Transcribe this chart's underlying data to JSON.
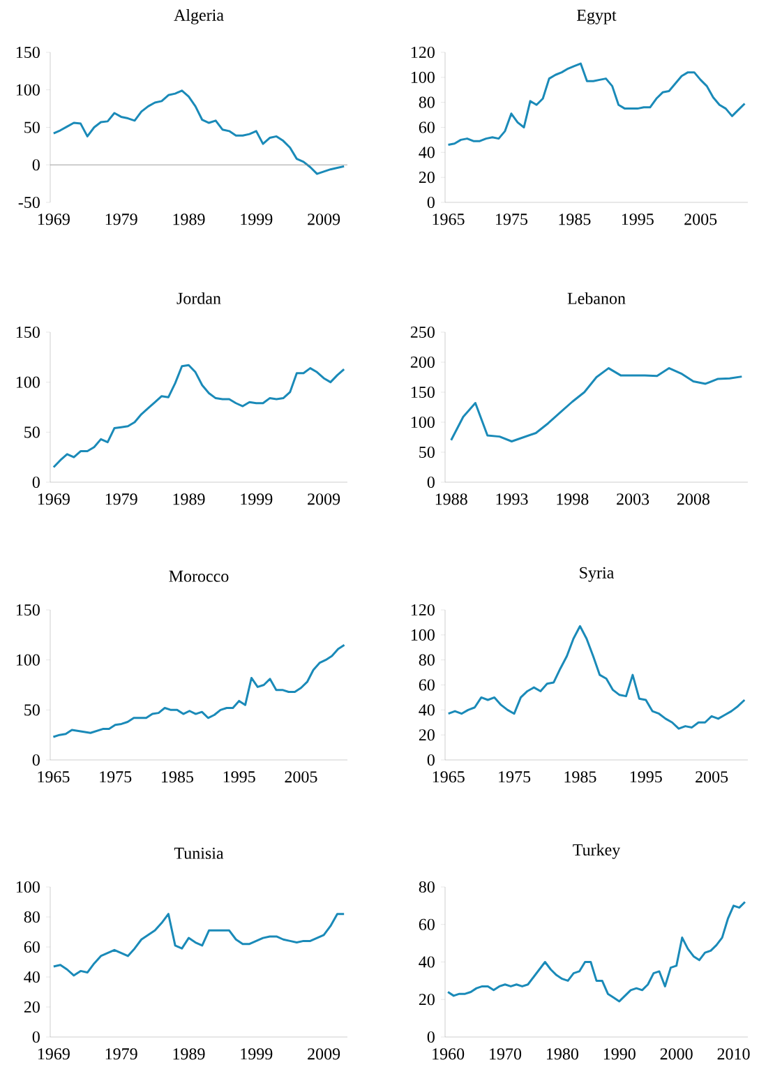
{
  "chart_data": [
    {
      "type": "line",
      "title": "Algeria",
      "color": "#1a8ab8",
      "grid": false,
      "marker": "none",
      "line_style": "solid",
      "x": [
        1969,
        1970,
        1971,
        1972,
        1973,
        1974,
        1975,
        1976,
        1977,
        1978,
        1979,
        1980,
        1981,
        1982,
        1983,
        1984,
        1985,
        1986,
        1987,
        1988,
        1989,
        1990,
        1991,
        1992,
        1993,
        1994,
        1995,
        1996,
        1997,
        1998,
        1999,
        2000,
        2001,
        2002,
        2003,
        2004,
        2005,
        2006,
        2007,
        2008,
        2009,
        2010,
        2011,
        2012
      ],
      "values": [
        42,
        46,
        51,
        56,
        55,
        38,
        50,
        57,
        58,
        69,
        64,
        62,
        59,
        71,
        78,
        83,
        85,
        93,
        95,
        99,
        91,
        78,
        60,
        56,
        59,
        47,
        45,
        39,
        39,
        41,
        45,
        28,
        36,
        38,
        32,
        23,
        8,
        4,
        -3,
        -12,
        -9,
        -6,
        -4,
        -2
      ],
      "xlim": [
        1968.5,
        2012.5
      ],
      "xticks": [
        1969,
        1979,
        1989,
        1999,
        2009
      ],
      "ylim": [
        -50,
        150
      ],
      "yticks": [
        -50,
        0,
        50,
        100,
        150
      ],
      "ref_lines": [
        {
          "axis": "y",
          "value": 0,
          "color": "#878787",
          "line_style": "solid"
        }
      ]
    },
    {
      "type": "line",
      "title": "Egypt",
      "color": "#1a8ab8",
      "grid": false,
      "marker": "none",
      "line_style": "solid",
      "x": [
        1965,
        1966,
        1967,
        1968,
        1969,
        1970,
        1971,
        1972,
        1973,
        1974,
        1975,
        1976,
        1977,
        1978,
        1979,
        1980,
        1981,
        1982,
        1983,
        1984,
        1985,
        1986,
        1987,
        1988,
        1989,
        1990,
        1991,
        1992,
        1993,
        1994,
        1995,
        1996,
        1997,
        1998,
        1999,
        2000,
        2001,
        2002,
        2003,
        2004,
        2005,
        2006,
        2007,
        2008,
        2009,
        2010,
        2011,
        2012
      ],
      "values": [
        46,
        47,
        50,
        51,
        49,
        49,
        51,
        52,
        51,
        57,
        71,
        64,
        60,
        81,
        78,
        83,
        99,
        102,
        104,
        107,
        109,
        111,
        97,
        97,
        98,
        99,
        93,
        78,
        75,
        75,
        75,
        76,
        76,
        83,
        88,
        89,
        95,
        101,
        104,
        104,
        98,
        93,
        84,
        78,
        75,
        69,
        74,
        79
      ],
      "xlim": [
        1964.5,
        2012.5
      ],
      "xticks": [
        1965,
        1975,
        1985,
        1995,
        2005
      ],
      "ylim": [
        0,
        120
      ],
      "yticks": [
        0,
        20,
        40,
        60,
        80,
        100,
        120
      ]
    },
    {
      "type": "line",
      "title": "Jordan",
      "color": "#1a8ab8",
      "grid": false,
      "marker": "none",
      "line_style": "solid",
      "x": [
        1969,
        1970,
        1971,
        1972,
        1973,
        1974,
        1975,
        1976,
        1977,
        1978,
        1979,
        1980,
        1981,
        1982,
        1983,
        1984,
        1985,
        1986,
        1987,
        1988,
        1989,
        1990,
        1991,
        1992,
        1993,
        1994,
        1995,
        1996,
        1997,
        1998,
        1999,
        2000,
        2001,
        2002,
        2003,
        2004,
        2005,
        2006,
        2007,
        2008,
        2009,
        2010,
        2011,
        2012
      ],
      "values": [
        15,
        22,
        28,
        25,
        31,
        31,
        35,
        43,
        40,
        54,
        55,
        56,
        60,
        68,
        74,
        80,
        86,
        85,
        99,
        116,
        117,
        110,
        97,
        89,
        84,
        83,
        83,
        79,
        76,
        80,
        79,
        79,
        84,
        83,
        84,
        90,
        109,
        109,
        114,
        110,
        104,
        100,
        107,
        113
      ],
      "xlim": [
        1968.5,
        2012.5
      ],
      "xticks": [
        1969,
        1979,
        1989,
        1999,
        2009
      ],
      "ylim": [
        0,
        150
      ],
      "yticks": [
        0,
        50,
        100,
        150
      ]
    },
    {
      "type": "line",
      "title": "Lebanon",
      "color": "#1a8ab8",
      "grid": false,
      "marker": "none",
      "line_style": "solid",
      "x": [
        1988,
        1989,
        1990,
        1991,
        1992,
        1993,
        1994,
        1995,
        1996,
        1997,
        1998,
        1999,
        2000,
        2001,
        2002,
        2003,
        2004,
        2005,
        2006,
        2007,
        2008,
        2009,
        2010,
        2011,
        2012
      ],
      "values": [
        70,
        109,
        132,
        78,
        76,
        68,
        75,
        82,
        98,
        116,
        134,
        150,
        175,
        190,
        178,
        178,
        178,
        177,
        190,
        181,
        168,
        164,
        172,
        173,
        176
      ],
      "xlim": [
        1987.5,
        2012.5
      ],
      "xticks": [
        1988,
        1993,
        1998,
        2003,
        2008
      ],
      "ylim": [
        0,
        250
      ],
      "yticks": [
        0,
        50,
        100,
        150,
        200,
        250
      ]
    },
    {
      "type": "line",
      "title": "Morocco",
      "color": "#1a8ab8",
      "grid": false,
      "marker": "none",
      "line_style": "solid",
      "x": [
        1965,
        1966,
        1967,
        1968,
        1969,
        1970,
        1971,
        1972,
        1973,
        1974,
        1975,
        1976,
        1977,
        1978,
        1979,
        1980,
        1981,
        1982,
        1983,
        1984,
        1985,
        1986,
        1987,
        1988,
        1989,
        1990,
        1991,
        1992,
        1993,
        1994,
        1995,
        1996,
        1997,
        1998,
        1999,
        2000,
        2001,
        2002,
        2003,
        2004,
        2005,
        2006,
        2007,
        2008,
        2009,
        2010,
        2011,
        2012
      ],
      "values": [
        23,
        25,
        26,
        30,
        29,
        28,
        27,
        29,
        31,
        31,
        35,
        36,
        38,
        42,
        42,
        42,
        46,
        47,
        52,
        50,
        50,
        46,
        49,
        46,
        48,
        42,
        45,
        50,
        52,
        52,
        59,
        55,
        82,
        73,
        75,
        81,
        70,
        70,
        68,
        68,
        72,
        78,
        90,
        97,
        100,
        104,
        111,
        115
      ],
      "xlim": [
        1964.5,
        2012.5
      ],
      "xticks": [
        1965,
        1975,
        1985,
        1995,
        2005
      ],
      "ylim": [
        0,
        150
      ],
      "yticks": [
        0,
        50,
        100,
        150
      ]
    },
    {
      "type": "line",
      "title": "Syria",
      "color": "#1a8ab8",
      "grid": false,
      "marker": "none",
      "line_style": "solid",
      "x": [
        1965,
        1966,
        1967,
        1968,
        1969,
        1970,
        1971,
        1972,
        1973,
        1974,
        1975,
        1976,
        1977,
        1978,
        1979,
        1980,
        1981,
        1982,
        1983,
        1984,
        1985,
        1986,
        1987,
        1988,
        1989,
        1990,
        1991,
        1992,
        1993,
        1994,
        1995,
        1996,
        1997,
        1998,
        1999,
        2000,
        2001,
        2002,
        2003,
        2004,
        2005,
        2006,
        2007,
        2008,
        2009,
        2010
      ],
      "values": [
        37,
        39,
        37,
        40,
        42,
        50,
        48,
        50,
        44,
        40,
        37,
        50,
        55,
        58,
        55,
        61,
        62,
        73,
        83,
        97,
        107,
        97,
        83,
        68,
        65,
        56,
        52,
        51,
        68,
        49,
        48,
        39,
        37,
        33,
        30,
        25,
        27,
        26,
        30,
        30,
        35,
        33,
        36,
        39,
        43,
        48
      ],
      "xlim": [
        1964.5,
        2010.5
      ],
      "xticks": [
        1965,
        1975,
        1985,
        1995,
        2005
      ],
      "ylim": [
        0,
        120
      ],
      "yticks": [
        0,
        20,
        40,
        60,
        80,
        100,
        120
      ]
    },
    {
      "type": "line",
      "title": "Tunisia",
      "color": "#1a8ab8",
      "grid": false,
      "marker": "none",
      "line_style": "solid",
      "x": [
        1969,
        1970,
        1971,
        1972,
        1973,
        1974,
        1975,
        1976,
        1977,
        1978,
        1979,
        1980,
        1981,
        1982,
        1983,
        1984,
        1985,
        1986,
        1987,
        1988,
        1989,
        1990,
        1991,
        1992,
        1993,
        1994,
        1995,
        1996,
        1997,
        1998,
        1999,
        2000,
        2001,
        2002,
        2003,
        2004,
        2005,
        2006,
        2007,
        2008,
        2009,
        2010,
        2011,
        2012
      ],
      "values": [
        47,
        48,
        45,
        41,
        44,
        43,
        49,
        54,
        56,
        58,
        56,
        54,
        59,
        65,
        68,
        71,
        76,
        82,
        61,
        59,
        66,
        63,
        61,
        71,
        71,
        71,
        71,
        65,
        62,
        62,
        64,
        66,
        67,
        67,
        65,
        64,
        63,
        64,
        64,
        66,
        68,
        74,
        82,
        82
      ],
      "xlim": [
        1968.5,
        2012.5
      ],
      "xticks": [
        1969,
        1979,
        1989,
        1999,
        2009
      ],
      "ylim": [
        0,
        100
      ],
      "yticks": [
        0,
        20,
        40,
        60,
        80,
        100
      ]
    },
    {
      "type": "line",
      "title": "Turkey",
      "color": "#1a8ab8",
      "grid": false,
      "marker": "none",
      "line_style": "solid",
      "x": [
        1960,
        1961,
        1962,
        1963,
        1964,
        1965,
        1966,
        1967,
        1968,
        1969,
        1970,
        1971,
        1972,
        1973,
        1974,
        1975,
        1976,
        1977,
        1978,
        1979,
        1980,
        1981,
        1982,
        1983,
        1984,
        1985,
        1986,
        1987,
        1988,
        1989,
        1990,
        1991,
        1992,
        1993,
        1994,
        1995,
        1996,
        1997,
        1998,
        1999,
        2000,
        2001,
        2002,
        2003,
        2004,
        2005,
        2006,
        2007,
        2008,
        2009,
        2010,
        2011,
        2012
      ],
      "values": [
        24,
        22,
        23,
        23,
        24,
        26,
        27,
        27,
        25,
        27,
        28,
        27,
        28,
        27,
        28,
        32,
        36,
        40,
        36,
        33,
        31,
        30,
        34,
        35,
        40,
        40,
        30,
        30,
        23,
        21,
        19,
        22,
        25,
        26,
        25,
        28,
        34,
        35,
        27,
        37,
        38,
        53,
        47,
        43,
        41,
        45,
        46,
        49,
        53,
        63,
        70,
        69,
        72
      ],
      "xlim": [
        1959.5,
        2012.5
      ],
      "xticks": [
        1960,
        1970,
        1980,
        1990,
        2000,
        2010
      ],
      "ylim": [
        0,
        80
      ],
      "yticks": [
        0,
        20,
        40,
        60,
        80
      ]
    }
  ]
}
